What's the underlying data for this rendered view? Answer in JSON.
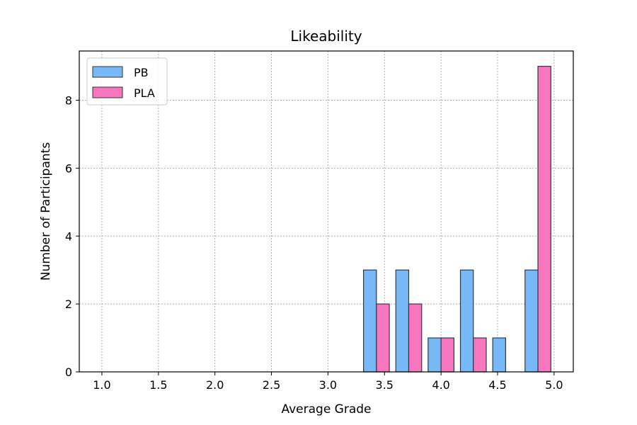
{
  "chart_data": {
    "type": "bar",
    "title": "Likeability",
    "xlabel": "Average Grade",
    "ylabel": "Number of Participants",
    "xlim": [
      0.8,
      5.17
    ],
    "ylim": [
      0,
      9.45
    ],
    "xticks": [
      "1.0",
      "1.5",
      "2.0",
      "2.5",
      "3.0",
      "3.5",
      "4.0",
      "4.5",
      "5.0"
    ],
    "yticks": [
      "0",
      "2",
      "4",
      "6",
      "8"
    ],
    "grid": true,
    "legend_position": "top-left",
    "bin_edges": [
      1.0,
      1.2857,
      1.5714,
      1.8571,
      2.1429,
      2.4286,
      2.7143,
      3.0,
      3.2857,
      3.5714,
      3.8571,
      4.1429,
      4.4286,
      4.7143,
      5.0
    ],
    "series": [
      {
        "name": "PB",
        "color": "#77b8f7",
        "values": [
          0,
          0,
          0,
          0,
          0,
          0,
          0,
          0,
          3,
          3,
          1,
          3,
          1,
          3
        ]
      },
      {
        "name": "PLA",
        "color": "#f776be",
        "values": [
          0,
          0,
          0,
          0,
          0,
          0,
          0,
          0,
          2,
          2,
          1,
          1,
          0,
          9
        ]
      }
    ]
  }
}
